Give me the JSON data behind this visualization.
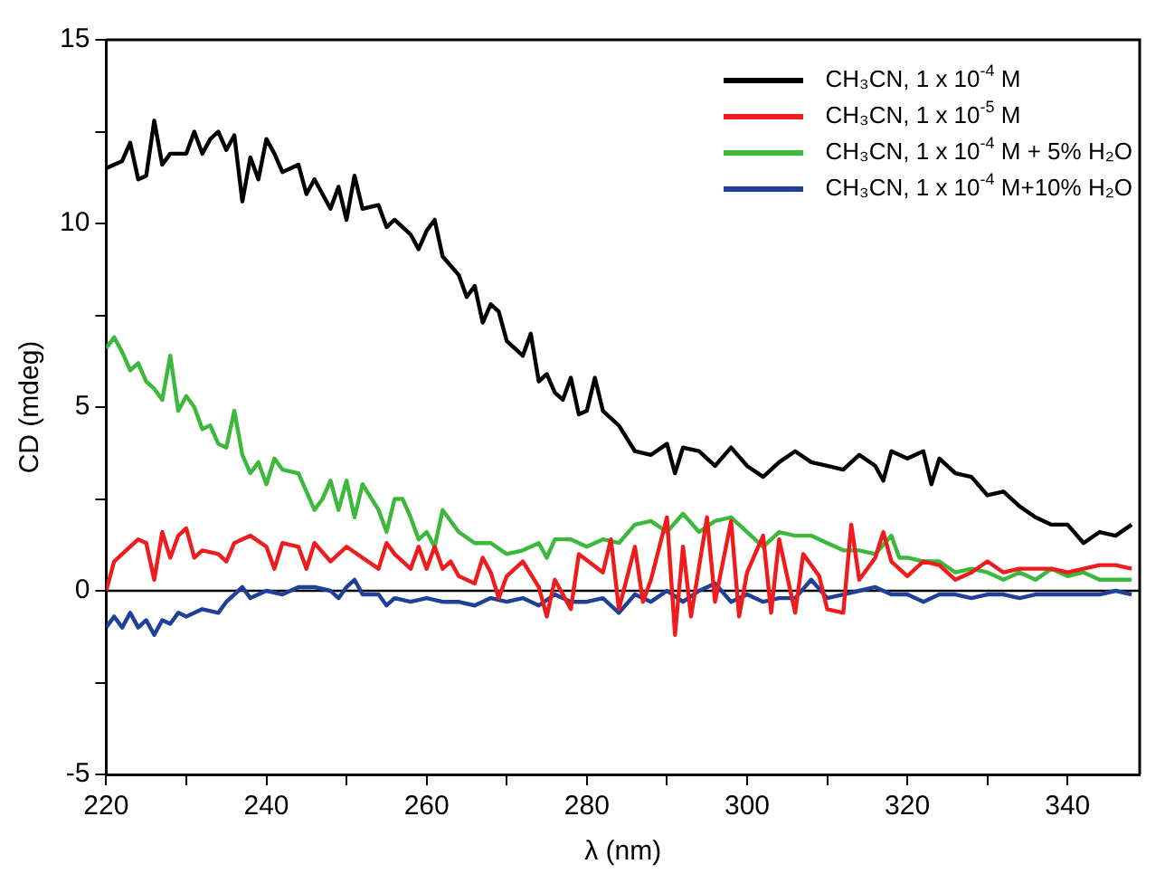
{
  "chart_data": {
    "type": "line",
    "xlabel": "λ (nm)",
    "ylabel": "CD (mdeg)",
    "xlim": [
      220,
      349
    ],
    "xticks": [
      220,
      {
        "value": 230,
        "label": null
      },
      240,
      {
        "value": 250,
        "label": null
      },
      260,
      {
        "value": 270,
        "label": null
      },
      280,
      {
        "value": 290,
        "label": null
      },
      300,
      {
        "value": 310,
        "label": null
      },
      320,
      {
        "value": 330,
        "label": null
      },
      340
    ],
    "ylim": [
      -5,
      15
    ],
    "yticks": [
      -5,
      {
        "value": -2.5,
        "label": null
      },
      0,
      {
        "value": 2.5,
        "label": null
      },
      5,
      {
        "value": 7.5,
        "label": null
      },
      10,
      {
        "value": 12.5,
        "label": null
      },
      15
    ],
    "grid": false,
    "legend": "top right",
    "marker": "none",
    "line_style": "solid",
    "ref_lines": [
      {
        "axis": "y",
        "value": 0,
        "color": "#000000"
      }
    ],
    "series": [
      {
        "name": "CH₃CN, 1 x 10$^{-4}$ M",
        "color": "#000000",
        "x": [
          220,
          222,
          223,
          224,
          225,
          226,
          227,
          228,
          230,
          231,
          232,
          233,
          234,
          235,
          236,
          237,
          238,
          239,
          240,
          241,
          242,
          244,
          245,
          246,
          248,
          249,
          250,
          251,
          252,
          254,
          255,
          256,
          258,
          259,
          260,
          261,
          262,
          264,
          265,
          266,
          267,
          268,
          269,
          270,
          272,
          273,
          274,
          275,
          276,
          277,
          278,
          279,
          280,
          281,
          282,
          284,
          286,
          288,
          290,
          291,
          292,
          294,
          296,
          298,
          300,
          302,
          304,
          306,
          308,
          310,
          312,
          314,
          316,
          317,
          318,
          320,
          322,
          323,
          324,
          326,
          328,
          330,
          332,
          334,
          336,
          338,
          340,
          342,
          344,
          346,
          348
        ],
        "values": [
          11.5,
          11.7,
          12.2,
          11.2,
          11.3,
          12.8,
          11.6,
          11.9,
          11.9,
          12.5,
          11.9,
          12.3,
          12.5,
          12.0,
          12.4,
          10.6,
          11.8,
          11.2,
          12.3,
          11.9,
          11.4,
          11.6,
          10.8,
          11.2,
          10.4,
          11.0,
          10.1,
          11.3,
          10.4,
          10.5,
          9.9,
          10.1,
          9.7,
          9.3,
          9.8,
          10.1,
          9.1,
          8.6,
          8.0,
          8.3,
          7.3,
          7.8,
          7.6,
          6.8,
          6.4,
          7.0,
          5.7,
          5.9,
          5.4,
          5.2,
          5.8,
          4.8,
          4.9,
          5.8,
          4.9,
          4.5,
          3.8,
          3.7,
          4.0,
          3.2,
          3.9,
          3.8,
          3.4,
          3.9,
          3.4,
          3.1,
          3.5,
          3.8,
          3.5,
          3.4,
          3.3,
          3.7,
          3.4,
          3.0,
          3.8,
          3.6,
          3.8,
          2.9,
          3.6,
          3.2,
          3.1,
          2.6,
          2.7,
          2.3,
          2.0,
          1.8,
          1.8,
          1.3,
          1.6,
          1.5,
          1.8
        ]
      },
      {
        "name": "CH₃CN, 1 x 10$^{-5}$ M",
        "color": "#ee1c1c",
        "x": [
          220,
          221,
          222,
          224,
          225,
          226,
          227,
          228,
          229,
          230,
          231,
          232,
          234,
          235,
          236,
          238,
          240,
          241,
          242,
          244,
          245,
          246,
          248,
          250,
          252,
          254,
          255,
          256,
          258,
          259,
          260,
          261,
          262,
          263,
          264,
          266,
          267,
          268,
          269,
          270,
          272,
          274,
          275,
          276,
          278,
          279,
          282,
          283,
          284,
          286,
          287,
          288,
          290,
          291,
          292,
          293,
          295,
          296,
          298,
          299,
          300,
          302,
          303,
          304,
          306,
          307,
          309,
          310,
          312,
          313,
          314,
          316,
          317,
          318,
          320,
          322,
          324,
          326,
          328,
          330,
          332,
          334,
          336,
          338,
          340,
          342,
          344,
          346,
          348
        ],
        "values": [
          0.0,
          0.8,
          1.0,
          1.4,
          1.3,
          0.3,
          1.6,
          0.9,
          1.5,
          1.7,
          0.9,
          1.1,
          1.0,
          0.8,
          1.3,
          1.5,
          1.2,
          0.6,
          1.3,
          1.2,
          0.6,
          1.3,
          0.8,
          1.2,
          0.9,
          0.6,
          1.3,
          1.0,
          0.6,
          1.2,
          0.6,
          1.2,
          0.6,
          0.8,
          0.4,
          0.2,
          0.9,
          0.5,
          -0.2,
          0.4,
          0.8,
          0.1,
          -0.7,
          0.3,
          -0.5,
          1.0,
          0.5,
          1.4,
          -0.5,
          1.2,
          -0.3,
          0.3,
          2.0,
          -1.2,
          1.2,
          -0.7,
          2.0,
          -0.3,
          1.9,
          -0.7,
          0.5,
          1.5,
          -0.6,
          1.4,
          -0.6,
          1.0,
          0.4,
          -0.5,
          -0.6,
          1.8,
          0.3,
          0.9,
          1.6,
          0.8,
          0.4,
          0.8,
          0.7,
          0.3,
          0.5,
          0.8,
          0.5,
          0.6,
          0.6,
          0.6,
          0.5,
          0.6,
          0.7,
          0.7,
          0.6
        ]
      },
      {
        "name": "CH₃CN, 1 x 10$^{-4}$ M + 5% H₂O",
        "color": "#3cb93c",
        "x": [
          220,
          221,
          222,
          223,
          224,
          225,
          226,
          227,
          228,
          229,
          230,
          231,
          232,
          233,
          234,
          235,
          236,
          237,
          238,
          239,
          240,
          241,
          242,
          244,
          245,
          246,
          247,
          248,
          249,
          250,
          251,
          252,
          254,
          255,
          256,
          257,
          258,
          259,
          260,
          261,
          262,
          264,
          266,
          268,
          270,
          272,
          274,
          275,
          276,
          278,
          280,
          282,
          284,
          286,
          288,
          290,
          292,
          294,
          296,
          298,
          300,
          302,
          304,
          306,
          308,
          310,
          312,
          314,
          316,
          318,
          319,
          320,
          322,
          324,
          326,
          328,
          330,
          332,
          334,
          336,
          338,
          340,
          342,
          344,
          346,
          348
        ],
        "values": [
          6.6,
          6.9,
          6.5,
          6.0,
          6.2,
          5.7,
          5.5,
          5.2,
          6.4,
          4.9,
          5.3,
          5.0,
          4.4,
          4.5,
          4.0,
          3.9,
          4.9,
          3.7,
          3.2,
          3.5,
          2.9,
          3.6,
          3.3,
          3.2,
          2.7,
          2.2,
          2.5,
          3.0,
          2.2,
          3.0,
          2.0,
          2.9,
          2.2,
          1.6,
          2.5,
          2.5,
          2.0,
          1.4,
          1.6,
          1.2,
          2.2,
          1.6,
          1.3,
          1.3,
          1.0,
          1.1,
          1.3,
          0.9,
          1.4,
          1.4,
          1.2,
          1.4,
          1.3,
          1.8,
          1.9,
          1.6,
          2.1,
          1.6,
          1.9,
          2.0,
          1.6,
          1.2,
          1.6,
          1.5,
          1.5,
          1.3,
          1.1,
          1.1,
          1.0,
          1.5,
          0.9,
          0.9,
          0.8,
          0.8,
          0.5,
          0.6,
          0.5,
          0.3,
          0.5,
          0.3,
          0.6,
          0.4,
          0.5,
          0.3,
          0.3,
          0.3
        ]
      },
      {
        "name": "CH₃CN, 1 x 10$^{-4}$ M+10% H₂O",
        "color": "#1f3f99",
        "x": [
          220,
          221,
          222,
          223,
          224,
          225,
          226,
          227,
          228,
          229,
          230,
          232,
          234,
          235,
          236,
          237,
          238,
          240,
          242,
          244,
          246,
          248,
          249,
          250,
          251,
          252,
          254,
          255,
          256,
          258,
          260,
          262,
          264,
          266,
          268,
          270,
          272,
          274,
          276,
          278,
          280,
          282,
          284,
          286,
          288,
          290,
          292,
          294,
          296,
          298,
          300,
          302,
          304,
          306,
          308,
          310,
          312,
          314,
          316,
          318,
          320,
          322,
          324,
          326,
          328,
          330,
          332,
          334,
          336,
          338,
          340,
          342,
          344,
          346,
          348
        ],
        "values": [
          -1.0,
          -0.7,
          -1.0,
          -0.6,
          -1.0,
          -0.8,
          -1.2,
          -0.8,
          -0.9,
          -0.6,
          -0.7,
          -0.5,
          -0.6,
          -0.3,
          -0.1,
          0.1,
          -0.2,
          0.0,
          -0.1,
          0.1,
          0.1,
          0.0,
          -0.2,
          0.1,
          0.3,
          -0.1,
          -0.1,
          -0.4,
          -0.2,
          -0.3,
          -0.2,
          -0.3,
          -0.3,
          -0.4,
          -0.2,
          -0.3,
          -0.2,
          -0.4,
          -0.1,
          -0.3,
          -0.3,
          -0.2,
          -0.6,
          -0.1,
          -0.3,
          0.0,
          -0.3,
          0.0,
          0.2,
          -0.3,
          -0.1,
          -0.3,
          -0.2,
          -0.2,
          0.3,
          -0.2,
          -0.1,
          0.0,
          0.1,
          -0.1,
          -0.1,
          -0.3,
          -0.1,
          -0.1,
          -0.2,
          -0.1,
          -0.1,
          -0.2,
          -0.1,
          -0.1,
          -0.1,
          -0.1,
          -0.1,
          0.0,
          -0.1
        ]
      }
    ]
  }
}
